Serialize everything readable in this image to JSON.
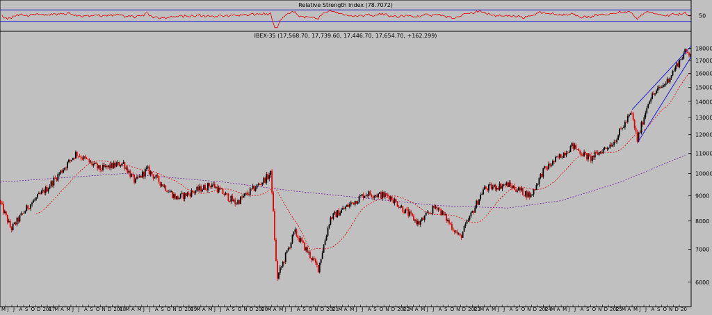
{
  "chart_data": [
    {
      "type": "line",
      "title": "Relative Strength Index (78.7072)",
      "y_ticks": [
        50
      ],
      "ylim": [
        0,
        100
      ],
      "reference_lines": [
        70,
        30
      ],
      "series": [
        {
          "color": "#e00000",
          "kind": "rsi"
        }
      ]
    },
    {
      "type": "candlestick",
      "title": "IBEX-35 (17,568.70, 17,739.60, 17,446.70, 17,654.70, +162.299)",
      "ylim": [
        5400,
        18700
      ],
      "y_ticks": [
        6000,
        7000,
        8000,
        9000,
        10000,
        11000,
        12000,
        13000,
        14000,
        15000,
        16000,
        17000,
        18000
      ],
      "x_tick_labels": [
        "M",
        "J",
        "J",
        "A",
        "S",
        "O",
        "D",
        "2017",
        "F",
        "M",
        "A",
        "M",
        "J",
        "J",
        "A",
        "S",
        "O",
        "N",
        "D",
        "2018",
        "F",
        "M",
        "A",
        "M",
        "J",
        "J",
        "A",
        "S",
        "O",
        "N",
        "D",
        "2019",
        "F",
        "M",
        "A",
        "M",
        "J",
        "J",
        "A",
        "S",
        "O",
        "N",
        "D",
        "2020",
        "F",
        "M",
        "A",
        "M",
        "J",
        "J",
        "A",
        "S",
        "O",
        "N",
        "D",
        "2021",
        "F",
        "M",
        "A",
        "M",
        "J",
        "J",
        "A",
        "S",
        "O",
        "N",
        "D",
        "2022",
        "F",
        "M",
        "A",
        "M",
        "J",
        "J",
        "A",
        "S",
        "O",
        "N",
        "D",
        "2023",
        "F",
        "M",
        "A",
        "M",
        "J",
        "J",
        "A",
        "S",
        "O",
        "N",
        "D",
        "2024",
        "F",
        "M",
        "A",
        "M",
        "J",
        "J",
        "A",
        "S",
        "O",
        "N",
        "D",
        "2025",
        "F",
        "M",
        "A",
        "M",
        "J",
        "J",
        "A",
        "S",
        "O",
        "N",
        "D",
        "20"
      ],
      "x_range": [
        "2016-04",
        "2025-12"
      ],
      "key_points": [
        {
          "date": "2016-04",
          "value": 8800
        },
        {
          "date": "2016-06",
          "value": 7700
        },
        {
          "date": "2016-09",
          "value": 8600
        },
        {
          "date": "2016-12",
          "value": 9300
        },
        {
          "date": "2017-05",
          "value": 11000
        },
        {
          "date": "2017-09",
          "value": 10200
        },
        {
          "date": "2018-01",
          "value": 10500
        },
        {
          "date": "2018-03",
          "value": 9600
        },
        {
          "date": "2018-05",
          "value": 10200
        },
        {
          "date": "2018-10",
          "value": 8900
        },
        {
          "date": "2019-04",
          "value": 9500
        },
        {
          "date": "2019-08",
          "value": 8700
        },
        {
          "date": "2019-12",
          "value": 9500
        },
        {
          "date": "2020-02",
          "value": 10000
        },
        {
          "date": "2020-03",
          "value": 6100
        },
        {
          "date": "2020-06",
          "value": 7600
        },
        {
          "date": "2020-10",
          "value": 6400
        },
        {
          "date": "2020-12",
          "value": 8100
        },
        {
          "date": "2021-06",
          "value": 9100
        },
        {
          "date": "2021-10",
          "value": 9000
        },
        {
          "date": "2022-03",
          "value": 7900
        },
        {
          "date": "2022-06",
          "value": 8600
        },
        {
          "date": "2022-10",
          "value": 7400
        },
        {
          "date": "2023-02",
          "value": 9300
        },
        {
          "date": "2023-06",
          "value": 9500
        },
        {
          "date": "2023-10",
          "value": 9000
        },
        {
          "date": "2023-12",
          "value": 10100
        },
        {
          "date": "2024-05",
          "value": 11400
        },
        {
          "date": "2024-08",
          "value": 10700
        },
        {
          "date": "2024-12",
          "value": 11600
        },
        {
          "date": "2025-03",
          "value": 13300
        },
        {
          "date": "2025-04",
          "value": 11700
        },
        {
          "date": "2025-06",
          "value": 14200
        },
        {
          "date": "2025-09",
          "value": 15400
        },
        {
          "date": "2025-12",
          "value": 17655
        }
      ],
      "series": [
        {
          "kind": "candles",
          "up_color": "#000000",
          "down_color": "#e00000"
        },
        {
          "kind": "moving-average-short",
          "color": "#e00000",
          "style": "dashed"
        },
        {
          "kind": "moving-average-long",
          "color": "#6a1b9a",
          "style": "dashed",
          "points": [
            {
              "date": "2016-04",
              "value": 9600
            },
            {
              "date": "2018-01",
              "value": 10000
            },
            {
              "date": "2019-06",
              "value": 9600
            },
            {
              "date": "2020-06",
              "value": 9200
            },
            {
              "date": "2021-06",
              "value": 8900
            },
            {
              "date": "2022-06",
              "value": 8600
            },
            {
              "date": "2023-06",
              "value": 8500
            },
            {
              "date": "2024-03",
              "value": 8800
            },
            {
              "date": "2025-01",
              "value": 9600
            },
            {
              "date": "2025-12",
              "value": 10900
            }
          ]
        }
      ],
      "trendlines": [
        {
          "color": "#1a1ad8",
          "from": {
            "date": "2025-04",
            "value": 11600
          },
          "to": {
            "date": "2025-12",
            "value": 17300
          }
        },
        {
          "color": "#1a1ad8",
          "from": {
            "date": "2025-03",
            "value": 13500
          },
          "to": {
            "date": "2025-12",
            "value": 18200
          }
        }
      ]
    }
  ]
}
